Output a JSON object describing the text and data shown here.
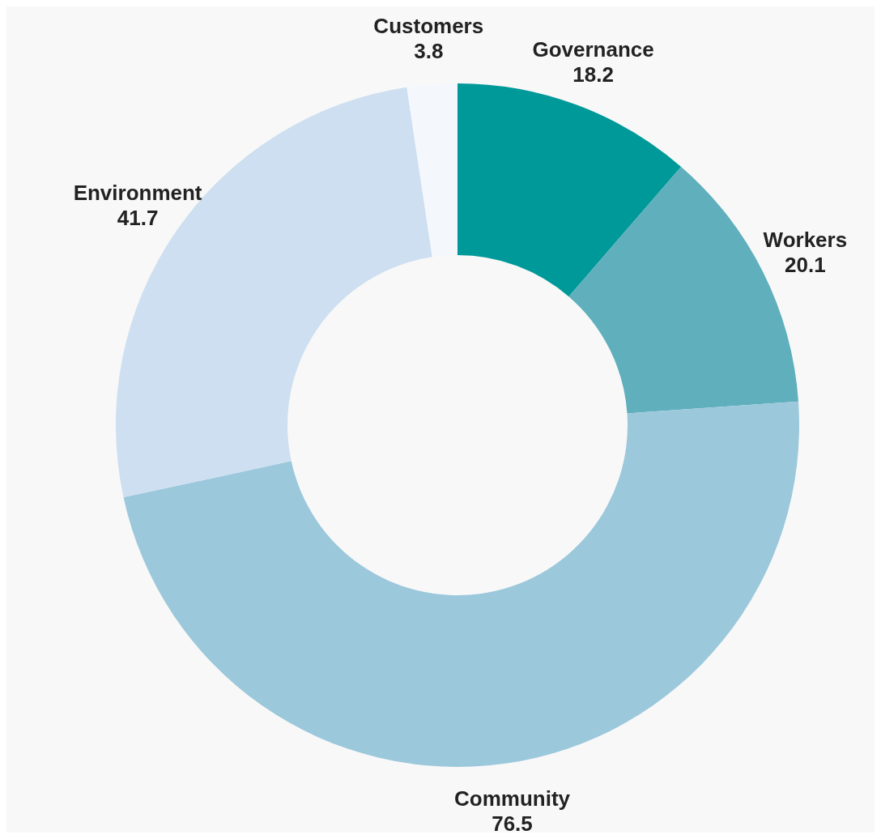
{
  "chart_data": {
    "type": "donut",
    "categories": [
      "Governance",
      "Workers",
      "Community",
      "Environment",
      "Customers"
    ],
    "values": [
      18.2,
      20.1,
      76.5,
      41.7,
      3.8
    ],
    "colors": [
      "#009999",
      "#5fafbd",
      "#9cc8dc",
      "#cddff0",
      "#f4f8fd"
    ],
    "data_labels": true
  }
}
